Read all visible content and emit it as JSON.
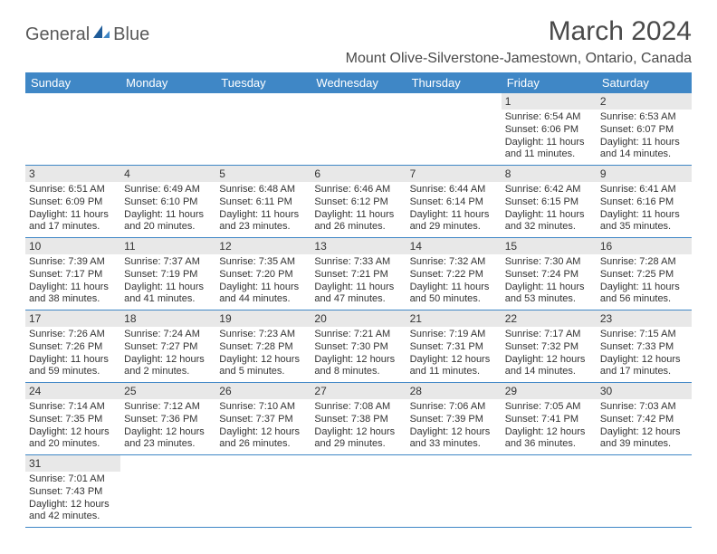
{
  "brand": {
    "part1": "General",
    "part2": "Blue"
  },
  "logo_colors": {
    "text": "#5a5a5a",
    "sail_dark": "#1f5c99",
    "sail_light": "#3f87c6"
  },
  "header": {
    "title": "March 2024",
    "location": "Mount Olive-Silverstone-Jamestown, Ontario, Canada",
    "title_fontsize": 30,
    "location_fontsize": 16,
    "title_color": "#4a4a4a"
  },
  "calendar": {
    "header_bg": "#3f87c6",
    "header_fg": "#ffffff",
    "daynum_bg": "#e8e8e8",
    "rule_color": "#3f87c6",
    "body_text_color": "#333333",
    "dow_fontsize": 13,
    "daynum_fontsize": 12,
    "body_fontsize": 11,
    "columns": [
      "Sunday",
      "Monday",
      "Tuesday",
      "Wednesday",
      "Thursday",
      "Friday",
      "Saturday"
    ],
    "weeks": [
      [
        null,
        null,
        null,
        null,
        null,
        {
          "n": "1",
          "sr": "Sunrise: 6:54 AM",
          "ss": "Sunset: 6:06 PM",
          "dl": "Daylight: 11 hours and 11 minutes."
        },
        {
          "n": "2",
          "sr": "Sunrise: 6:53 AM",
          "ss": "Sunset: 6:07 PM",
          "dl": "Daylight: 11 hours and 14 minutes."
        }
      ],
      [
        {
          "n": "3",
          "sr": "Sunrise: 6:51 AM",
          "ss": "Sunset: 6:09 PM",
          "dl": "Daylight: 11 hours and 17 minutes."
        },
        {
          "n": "4",
          "sr": "Sunrise: 6:49 AM",
          "ss": "Sunset: 6:10 PM",
          "dl": "Daylight: 11 hours and 20 minutes."
        },
        {
          "n": "5",
          "sr": "Sunrise: 6:48 AM",
          "ss": "Sunset: 6:11 PM",
          "dl": "Daylight: 11 hours and 23 minutes."
        },
        {
          "n": "6",
          "sr": "Sunrise: 6:46 AM",
          "ss": "Sunset: 6:12 PM",
          "dl": "Daylight: 11 hours and 26 minutes."
        },
        {
          "n": "7",
          "sr": "Sunrise: 6:44 AM",
          "ss": "Sunset: 6:14 PM",
          "dl": "Daylight: 11 hours and 29 minutes."
        },
        {
          "n": "8",
          "sr": "Sunrise: 6:42 AM",
          "ss": "Sunset: 6:15 PM",
          "dl": "Daylight: 11 hours and 32 minutes."
        },
        {
          "n": "9",
          "sr": "Sunrise: 6:41 AM",
          "ss": "Sunset: 6:16 PM",
          "dl": "Daylight: 11 hours and 35 minutes."
        }
      ],
      [
        {
          "n": "10",
          "sr": "Sunrise: 7:39 AM",
          "ss": "Sunset: 7:17 PM",
          "dl": "Daylight: 11 hours and 38 minutes."
        },
        {
          "n": "11",
          "sr": "Sunrise: 7:37 AM",
          "ss": "Sunset: 7:19 PM",
          "dl": "Daylight: 11 hours and 41 minutes."
        },
        {
          "n": "12",
          "sr": "Sunrise: 7:35 AM",
          "ss": "Sunset: 7:20 PM",
          "dl": "Daylight: 11 hours and 44 minutes."
        },
        {
          "n": "13",
          "sr": "Sunrise: 7:33 AM",
          "ss": "Sunset: 7:21 PM",
          "dl": "Daylight: 11 hours and 47 minutes."
        },
        {
          "n": "14",
          "sr": "Sunrise: 7:32 AM",
          "ss": "Sunset: 7:22 PM",
          "dl": "Daylight: 11 hours and 50 minutes."
        },
        {
          "n": "15",
          "sr": "Sunrise: 7:30 AM",
          "ss": "Sunset: 7:24 PM",
          "dl": "Daylight: 11 hours and 53 minutes."
        },
        {
          "n": "16",
          "sr": "Sunrise: 7:28 AM",
          "ss": "Sunset: 7:25 PM",
          "dl": "Daylight: 11 hours and 56 minutes."
        }
      ],
      [
        {
          "n": "17",
          "sr": "Sunrise: 7:26 AM",
          "ss": "Sunset: 7:26 PM",
          "dl": "Daylight: 11 hours and 59 minutes."
        },
        {
          "n": "18",
          "sr": "Sunrise: 7:24 AM",
          "ss": "Sunset: 7:27 PM",
          "dl": "Daylight: 12 hours and 2 minutes."
        },
        {
          "n": "19",
          "sr": "Sunrise: 7:23 AM",
          "ss": "Sunset: 7:28 PM",
          "dl": "Daylight: 12 hours and 5 minutes."
        },
        {
          "n": "20",
          "sr": "Sunrise: 7:21 AM",
          "ss": "Sunset: 7:30 PM",
          "dl": "Daylight: 12 hours and 8 minutes."
        },
        {
          "n": "21",
          "sr": "Sunrise: 7:19 AM",
          "ss": "Sunset: 7:31 PM",
          "dl": "Daylight: 12 hours and 11 minutes."
        },
        {
          "n": "22",
          "sr": "Sunrise: 7:17 AM",
          "ss": "Sunset: 7:32 PM",
          "dl": "Daylight: 12 hours and 14 minutes."
        },
        {
          "n": "23",
          "sr": "Sunrise: 7:15 AM",
          "ss": "Sunset: 7:33 PM",
          "dl": "Daylight: 12 hours and 17 minutes."
        }
      ],
      [
        {
          "n": "24",
          "sr": "Sunrise: 7:14 AM",
          "ss": "Sunset: 7:35 PM",
          "dl": "Daylight: 12 hours and 20 minutes."
        },
        {
          "n": "25",
          "sr": "Sunrise: 7:12 AM",
          "ss": "Sunset: 7:36 PM",
          "dl": "Daylight: 12 hours and 23 minutes."
        },
        {
          "n": "26",
          "sr": "Sunrise: 7:10 AM",
          "ss": "Sunset: 7:37 PM",
          "dl": "Daylight: 12 hours and 26 minutes."
        },
        {
          "n": "27",
          "sr": "Sunrise: 7:08 AM",
          "ss": "Sunset: 7:38 PM",
          "dl": "Daylight: 12 hours and 29 minutes."
        },
        {
          "n": "28",
          "sr": "Sunrise: 7:06 AM",
          "ss": "Sunset: 7:39 PM",
          "dl": "Daylight: 12 hours and 33 minutes."
        },
        {
          "n": "29",
          "sr": "Sunrise: 7:05 AM",
          "ss": "Sunset: 7:41 PM",
          "dl": "Daylight: 12 hours and 36 minutes."
        },
        {
          "n": "30",
          "sr": "Sunrise: 7:03 AM",
          "ss": "Sunset: 7:42 PM",
          "dl": "Daylight: 12 hours and 39 minutes."
        }
      ],
      [
        {
          "n": "31",
          "sr": "Sunrise: 7:01 AM",
          "ss": "Sunset: 7:43 PM",
          "dl": "Daylight: 12 hours and 42 minutes."
        },
        null,
        null,
        null,
        null,
        null,
        null
      ]
    ]
  }
}
